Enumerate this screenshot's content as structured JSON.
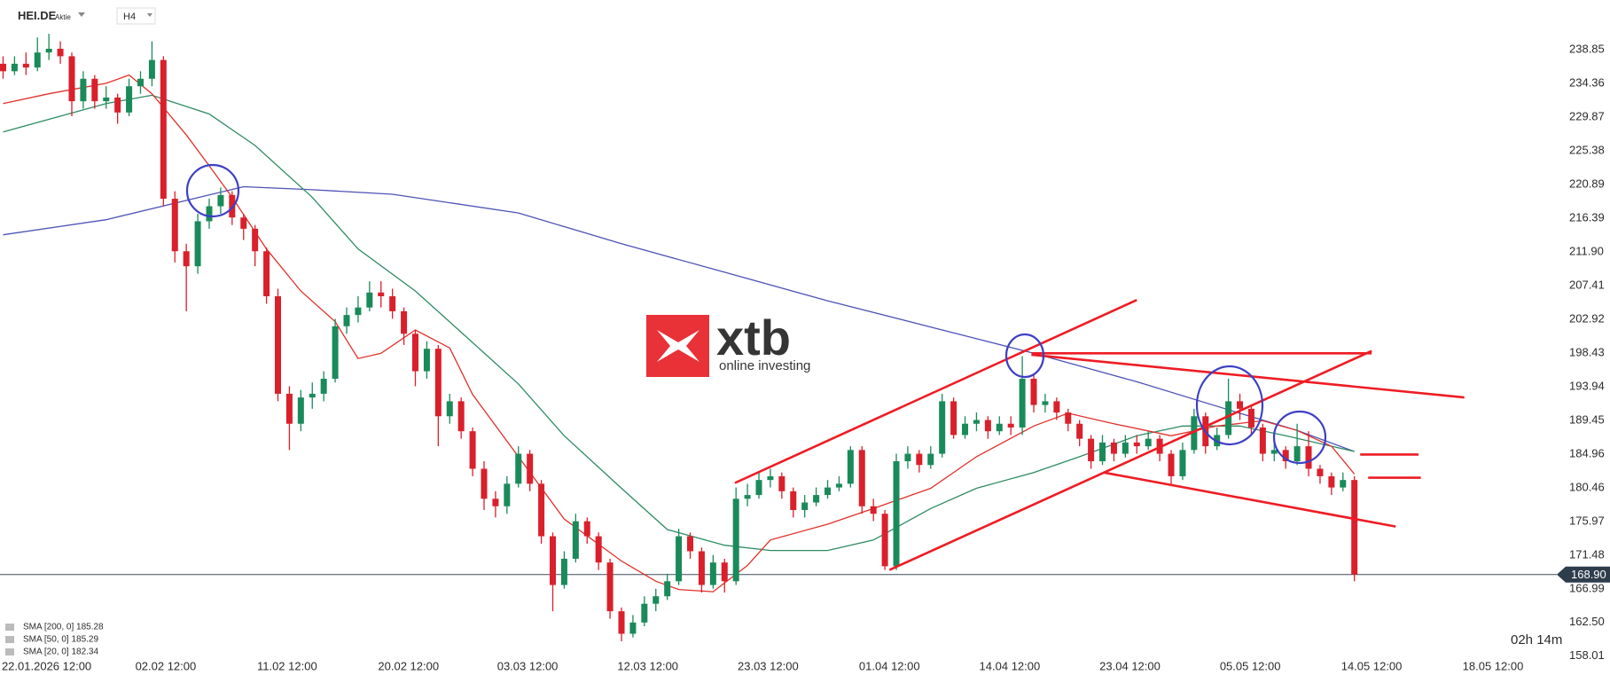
{
  "header": {
    "symbol": "HEI.DE",
    "kind": "Aktie",
    "interval": "H4"
  },
  "watermark": {
    "brand": "xtb",
    "tagline": "online investing"
  },
  "countdown": "02h 14m",
  "chart_data": {
    "type": "candlestick",
    "up_color": "#1a8a5a",
    "down_color": "#d9202b",
    "open": [
      237,
      236,
      237,
      236.5,
      238.5,
      239,
      238,
      232,
      235,
      232,
      232.5,
      230.5,
      234,
      235,
      237.5,
      219,
      212,
      210,
      216,
      218,
      219.5,
      216.5,
      215,
      212,
      206,
      193,
      189,
      192.5,
      193,
      195,
      202,
      203.5,
      204.5,
      206.5,
      206,
      204,
      201,
      196,
      199,
      190,
      192,
      188,
      183,
      179,
      178,
      181,
      185,
      181,
      174,
      167.5,
      171,
      176,
      174,
      170.5,
      164,
      161,
      162.5,
      165,
      166,
      168,
      174,
      172,
      167.5,
      170.5,
      168,
      179,
      179.5,
      181.5,
      182,
      180,
      177.5,
      178.5,
      179.5,
      180.5,
      181,
      185.5,
      178,
      177,
      170,
      184,
      185,
      183.5,
      185,
      192,
      187.5,
      189,
      189.5,
      188,
      189,
      188.5,
      195,
      191.5,
      192,
      190.5,
      189,
      187,
      184,
      186.5,
      185,
      186.5,
      186,
      187,
      185,
      182,
      185.5,
      190,
      186,
      187.5,
      192,
      191,
      188.5,
      185,
      185.5,
      184,
      186,
      183,
      182,
      180.5,
      181.5
    ],
    "high": [
      238,
      238,
      238.5,
      240.5,
      241,
      240,
      238.5,
      236,
      235.5,
      234,
      233,
      235,
      236,
      240,
      238,
      220,
      213,
      217,
      219,
      220.5,
      220,
      217,
      215.5,
      212.5,
      207,
      194,
      193.5,
      194.5,
      196,
      203,
      204.5,
      206,
      208,
      208,
      207,
      204.5,
      201.5,
      200,
      199.5,
      193,
      192.5,
      188.5,
      184,
      180,
      182,
      186,
      185.5,
      181.5,
      174.5,
      172,
      177,
      176.5,
      174.5,
      171,
      164.5,
      163.5,
      166,
      167,
      169,
      175,
      174.5,
      172.5,
      171.5,
      171,
      180.5,
      181,
      182.5,
      183,
      182.5,
      180.5,
      179.5,
      180.5,
      181.5,
      182,
      186,
      186,
      179,
      177.5,
      185,
      186,
      185.5,
      186,
      193,
      192.5,
      190,
      190.5,
      190,
      190,
      190,
      198,
      195.5,
      193,
      192.5,
      191,
      189.5,
      187.5,
      187.5,
      187,
      187.5,
      187.5,
      188,
      187.5,
      185.5,
      186.5,
      191,
      190.5,
      188.5,
      195,
      193,
      191.5,
      189,
      186.5,
      186,
      189,
      188,
      183.5,
      182.5,
      182.5,
      182
    ],
    "low": [
      235,
      235.5,
      235.5,
      236,
      237.5,
      237,
      230,
      231,
      231,
      231,
      229,
      230,
      233,
      234,
      218,
      210.5,
      204,
      209,
      215,
      217,
      215.5,
      213.5,
      210,
      205,
      192,
      185.5,
      188,
      191,
      192,
      194.5,
      201,
      202.5,
      204,
      204.5,
      203,
      199.5,
      194,
      195,
      186,
      189,
      187,
      182,
      177.5,
      176.5,
      177,
      180.5,
      180,
      173,
      164,
      167,
      170.5,
      173,
      169.5,
      163,
      160,
      160.5,
      162,
      164,
      165.5,
      167.5,
      171,
      166.5,
      167,
      166.5,
      167.5,
      178,
      179,
      180.5,
      179,
      176.5,
      176.5,
      178,
      179,
      180,
      180.5,
      177,
      176,
      169.5,
      169.5,
      183,
      182.5,
      183,
      184.5,
      187,
      187,
      188,
      187,
      187.5,
      187.5,
      187.5,
      190.5,
      190.5,
      189.5,
      188,
      186,
      183,
      183.5,
      184,
      184.5,
      185,
      185.5,
      184,
      181,
      181.5,
      185,
      185,
      185.5,
      187,
      189.5,
      187.5,
      184,
      184,
      183,
      183.5,
      182,
      181,
      179.5,
      180,
      168
    ],
    "close": [
      236,
      237,
      236.5,
      238.5,
      239,
      238,
      232,
      235,
      232,
      232.5,
      230.5,
      234,
      235,
      237.5,
      219,
      212,
      210,
      216,
      218,
      219.5,
      216.5,
      215,
      212,
      206,
      193,
      189,
      192.5,
      193,
      195,
      202,
      203.5,
      204.5,
      206.5,
      206,
      204,
      201,
      196,
      199,
      190,
      192,
      188,
      183,
      179,
      178,
      181,
      185,
      181,
      174,
      167.5,
      171,
      176,
      174,
      170.5,
      164,
      161,
      162.5,
      165,
      166,
      168,
      174,
      172,
      167.5,
      170.5,
      168,
      179,
      179.5,
      181.5,
      182,
      180,
      177.5,
      178.5,
      179.5,
      180.5,
      181,
      185.5,
      178,
      177,
      170,
      184,
      185,
      183.5,
      185,
      192,
      187.5,
      189,
      189.5,
      188,
      189,
      188.5,
      195,
      191.5,
      192,
      190.5,
      189,
      187,
      184,
      186.5,
      185,
      186.5,
      186,
      187,
      185,
      182,
      185.5,
      190,
      186,
      187.5,
      192,
      191,
      188.5,
      185,
      185.5,
      184,
      186,
      183,
      182,
      180.5,
      181.5,
      168.9
    ],
    "series": [
      {
        "name": "SMA [200, 0] 185.28",
        "color": "#4d52b5",
        "x": [
          0,
          9,
          18,
          21,
          27,
          34,
          45,
          54,
          63,
          72,
          81,
          90,
          99,
          108,
          113,
          118
        ],
        "values": [
          214.2,
          216.2,
          219.5,
          220.6,
          220.2,
          219.6,
          217.1,
          213.0,
          209.2,
          205.4,
          201.9,
          198.4,
          194.6,
          190.4,
          188.1,
          185.3
        ]
      },
      {
        "name": "SMA [50, 0] 185.29",
        "color": "#2e8b62",
        "x": [
          0,
          9,
          13,
          18,
          22,
          27,
          31,
          36,
          40,
          45,
          49,
          54,
          58,
          63,
          67,
          72,
          76,
          81,
          85,
          90,
          94,
          99,
          103,
          108,
          112,
          118
        ],
        "values": [
          227.9,
          231.7,
          232.8,
          230.3,
          226.1,
          219.2,
          212.3,
          206.7,
          201.2,
          194.3,
          187.4,
          180.4,
          174.9,
          172.8,
          172.1,
          172.1,
          173.5,
          177.7,
          180.4,
          182.5,
          184.6,
          187.4,
          188.7,
          188.7,
          187.4,
          185.3
        ]
      },
      {
        "name": "SMA [20, 0] 182.34",
        "color": "#e0302a",
        "x": [
          0,
          4,
          9,
          11,
          13,
          16,
          18,
          20,
          23,
          26,
          29,
          31,
          33,
          36,
          39,
          41,
          45,
          49,
          54,
          57,
          59,
          62,
          65,
          67,
          72,
          76,
          81,
          85,
          90,
          93,
          97,
          102,
          106,
          110,
          113,
          116,
          118
        ],
        "values": [
          231.7,
          233.0,
          234.4,
          235.5,
          233.0,
          227.5,
          223.4,
          219.2,
          212.3,
          206.7,
          202.6,
          197.7,
          198.4,
          201.5,
          199.1,
          192.9,
          184.6,
          176.3,
          170.7,
          168.0,
          166.9,
          166.6,
          170.1,
          173.5,
          175.6,
          177.7,
          180.4,
          184.6,
          188.7,
          190.4,
          189.0,
          187.4,
          188.7,
          189.4,
          188.1,
          186.0,
          182.3
        ]
      }
    ],
    "trendline_color": "#ee1c24",
    "trendlines": [
      {
        "x": [
          63.9,
          99.0
        ],
        "y": [
          181.1,
          205.5
        ]
      },
      {
        "x": [
          77.4,
          119.5
        ],
        "y": [
          169.5,
          198.7
        ]
      },
      {
        "x": [
          89.8,
          119.5
        ],
        "y": [
          198.4,
          198.4
        ]
      },
      {
        "x": [
          89.8,
          127.6
        ],
        "y": [
          198.2,
          192.5
        ]
      },
      {
        "x": [
          96.1,
          121.6
        ],
        "y": [
          182.5,
          175.3
        ]
      },
      {
        "x": [
          118.5,
          123.6
        ],
        "y": [
          184.9,
          184.9
        ]
      },
      {
        "x": [
          119.2,
          123.8
        ],
        "y": [
          181.8,
          181.8
        ]
      }
    ],
    "last_price": {
      "value": 168.9,
      "label": "168.90"
    },
    "xlim": [
      -0.27,
      134.9
    ],
    "ylim": [
      155.5,
      245.5
    ],
    "xticks": [
      {
        "value": 3.8,
        "label": "22.01.2026 12:00"
      },
      {
        "value": 14.2,
        "label": "02.02 12:00"
      },
      {
        "value": 24.8,
        "label": "11.02 12:00"
      },
      {
        "value": 35.4,
        "label": "20.02 12:00"
      },
      {
        "value": 45.8,
        "label": "03.03 12:00"
      },
      {
        "value": 56.3,
        "label": "12.03 12:00"
      },
      {
        "value": 66.8,
        "label": "23.03 12:00"
      },
      {
        "value": 77.4,
        "label": "01.04 12:00"
      },
      {
        "value": 87.9,
        "label": "14.04 12:00"
      },
      {
        "value": 98.4,
        "label": "23.04 12:00"
      },
      {
        "value": 108.9,
        "label": "05.05 12:00"
      },
      {
        "value": 119.5,
        "label": "14.05 12:00"
      },
      {
        "value": 130.1,
        "label": "18.05 12:00"
      }
    ],
    "yticks": [
      238.85,
      234.36,
      229.87,
      225.38,
      220.89,
      216.39,
      {
        "value": 211.9,
        "label": "211.90"
      },
      207.41,
      202.92,
      198.43,
      193.94,
      189.45,
      184.96,
      180.46,
      175.97,
      171.48,
      166.99,
      {
        "value": 162.5,
        "label": "162.50"
      },
      158.01
    ]
  }
}
